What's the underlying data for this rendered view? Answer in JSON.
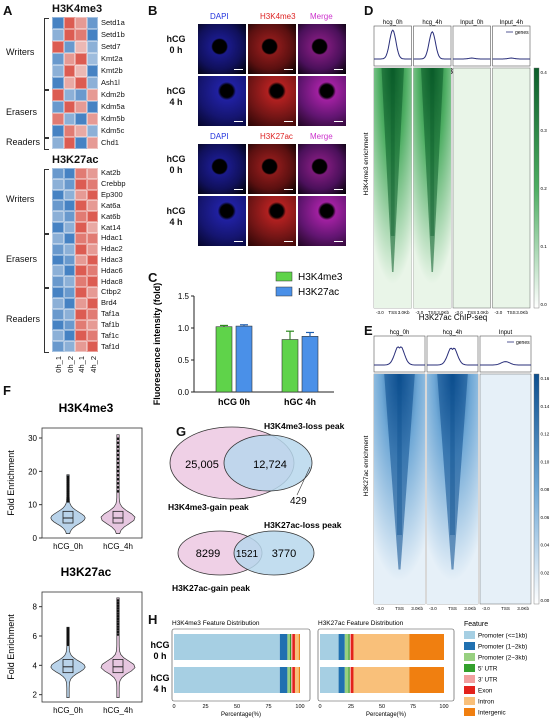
{
  "panels": {
    "A": "A",
    "B": "B",
    "C": "C",
    "D": "D",
    "E": "E",
    "F": "F",
    "G": "G",
    "H": "H"
  },
  "panelA": {
    "title1": "H3K4me3",
    "groups1": [
      {
        "name": "Writers",
        "genes": [
          "Setd1a",
          "Setd1b",
          "Setd7",
          "Kmt2a",
          "Kmt2b",
          "Ash1l"
        ]
      },
      {
        "name": "Erasers",
        "genes": [
          "Kdm2b",
          "Kdm5a",
          "Kdm5b",
          "Kdm5c"
        ]
      },
      {
        "name": "Readers",
        "genes": [
          "Chd1"
        ]
      }
    ],
    "matrix1": [
      [
        -1,
        1,
        0.6,
        -0.8
      ],
      [
        -0.6,
        1,
        0.8,
        -1
      ],
      [
        1,
        -0.8,
        0.4,
        -0.6
      ],
      [
        -0.8,
        0.6,
        1,
        -0.5
      ],
      [
        -0.6,
        1,
        0.4,
        -1
      ],
      [
        -1,
        0.5,
        1,
        -0.6
      ],
      [
        1,
        -0.6,
        -0.8,
        0.6
      ],
      [
        -0.8,
        1,
        0.6,
        -1
      ],
      [
        0.8,
        -0.6,
        -1,
        0.6
      ],
      [
        -1,
        0.8,
        0.5,
        -0.6
      ],
      [
        -0.6,
        1,
        -1,
        0.6
      ]
    ],
    "title2": "H3K27ac",
    "groups2": [
      {
        "name": "Writers",
        "genes": [
          "Kat2b",
          "Crebbp",
          "Ep300",
          "Kat6a",
          "Kat6b",
          "Kat14"
        ]
      },
      {
        "name": "Erasers",
        "genes": [
          "Hdac1",
          "Hdac2",
          "Hdac3",
          "Hdac6",
          "Hdac8"
        ]
      },
      {
        "name": "Readers",
        "genes": [
          "Ctbp2",
          "Brd4",
          "Taf1a",
          "Taf1b",
          "Taf1c",
          "Taf1d"
        ]
      }
    ],
    "matrix2": [
      [
        -0.8,
        -1,
        0.8,
        0.6
      ],
      [
        -0.6,
        -0.8,
        1,
        0.8
      ],
      [
        -1,
        -0.6,
        0.6,
        1
      ],
      [
        -0.8,
        -1,
        1,
        0.6
      ],
      [
        -0.6,
        -0.8,
        0.8,
        1
      ],
      [
        -1,
        -0.6,
        1,
        0.5
      ],
      [
        -0.6,
        -1,
        0.8,
        0.8
      ],
      [
        -0.8,
        -0.6,
        1,
        0.6
      ],
      [
        -1,
        -0.8,
        0.6,
        1
      ],
      [
        -0.6,
        -1,
        1,
        0.8
      ],
      [
        -0.8,
        -0.6,
        0.8,
        1
      ],
      [
        -1,
        -0.8,
        1,
        0.6
      ],
      [
        -0.6,
        -1,
        0.6,
        1
      ],
      [
        -0.8,
        -0.6,
        1,
        0.8
      ],
      [
        -1,
        -0.8,
        0.8,
        0.6
      ],
      [
        -0.6,
        -1,
        1,
        0.8
      ],
      [
        -0.8,
        -0.6,
        0.6,
        1
      ]
    ],
    "columns": [
      "0h_1",
      "0h_2",
      "4h_1",
      "4h_2"
    ]
  },
  "panelB": {
    "stain1": [
      "DAPI",
      "H3K4me3",
      "Merge"
    ],
    "stain2": [
      "DAPI",
      "H3K27ac",
      "Merge"
    ],
    "rows": [
      "hCG\n0 h",
      "hCG\n4 h"
    ]
  },
  "chart_data": [
    {
      "type": "bar",
      "panel": "C",
      "categories": [
        "hCG 0h",
        "hGC 4h"
      ],
      "series": [
        {
          "name": "H3K4me3",
          "values": [
            1.02,
            0.82
          ],
          "errors": [
            0.02,
            0.13
          ],
          "color": "#5fd34a"
        },
        {
          "name": "H3K27ac",
          "values": [
            1.03,
            0.87
          ],
          "errors": [
            0.02,
            0.06
          ],
          "color": "#4a90e8"
        }
      ],
      "ylabel": "Fluorescence intensity (fold)",
      "ylim": [
        0,
        1.5
      ],
      "yticks": [
        "0.0",
        "0.5",
        "1.0",
        "1.5"
      ],
      "legend": "top-right"
    },
    {
      "type": "violin",
      "panel": "F",
      "title": "H3K4me3",
      "categories": [
        "hCG_0h",
        "hCG_4h"
      ],
      "ylabel": "Fold Enrichment",
      "ylim": [
        0,
        33
      ],
      "yticks": [
        "0",
        "10",
        "20",
        "30"
      ],
      "medians": [
        6,
        6
      ]
    },
    {
      "type": "violin",
      "panel": "F",
      "title": "H3K27ac",
      "categories": [
        "hCG_0h",
        "hCG_4h"
      ],
      "ylabel": "Fold Enrichment",
      "ylim": [
        1.5,
        9
      ],
      "yticks": [
        "2",
        "4",
        "6",
        "8"
      ],
      "medians": [
        3.9,
        3.9
      ]
    },
    {
      "type": "bar",
      "panel": "H",
      "title1": "H3K4me3 Feature Distribution",
      "title2": "H3K27ac Feature Distribution",
      "categories": [
        "hCG\n0 h",
        "hCG\n4 h"
      ],
      "xlabel": "Percentage(%)",
      "xticks": [
        "0",
        "25",
        "50",
        "75",
        "100"
      ],
      "features": [
        "Promoter (<=1kb)",
        "Promoter (1~2kb)",
        "Promoter (2~3kb)",
        "5' UTR",
        "3' UTR",
        "Exon",
        "Intron",
        "Intergenic"
      ],
      "colors": [
        "#a6cfe3",
        "#2070b0",
        "#98d080",
        "#33a02c",
        "#f2a0a0",
        "#e3221c",
        "#f9c07a",
        "#f07f10"
      ],
      "legend_title": "Feature",
      "k4_0h": [
        84,
        6,
        2,
        1,
        1,
        2,
        3,
        1
      ],
      "k4_4h": [
        84,
        6,
        2,
        1,
        1,
        2,
        3,
        1
      ],
      "k27_0h": [
        15,
        5,
        3,
        1,
        1,
        2,
        45,
        28
      ],
      "k27_4h": [
        15,
        5,
        3,
        1,
        1,
        2,
        45,
        28
      ]
    }
  ],
  "panelD": {
    "title": "H3K4me3 ChIP-seq",
    "profiles": [
      "hcg_0h",
      "hcg_4h",
      "Input_0h",
      "Input_4h"
    ],
    "ylabel": "H3K4me3 enrichment",
    "legend": "genes",
    "colorbar": [
      "0.4",
      "0.3",
      "0.2",
      "0.1",
      "0.0"
    ]
  },
  "panelE": {
    "title": "H3K27ac ChIP-seq",
    "profiles": [
      "hcg_0h",
      "hcg_4h",
      "Input"
    ],
    "ylabel": "H3K27ac enrichment",
    "legend": "genes",
    "colorbar": [
      "0.16",
      "0.14",
      "0.12",
      "0.10",
      "0.08",
      "0.06",
      "0.04",
      "0.02",
      "0.00"
    ]
  },
  "panelG": {
    "v1_left": "25,005",
    "v1_mid": "12,724",
    "v1_right": "429",
    "v1_top": "H3K4me3-loss peak",
    "v1_bottom": "H3K4me3-gain peak",
    "v2_left": "8299",
    "v2_mid": "1521",
    "v2_right": "3770",
    "v2_top": "H3K27ac-loss peak",
    "v2_bottom": "H3K27ac-gain peak"
  }
}
